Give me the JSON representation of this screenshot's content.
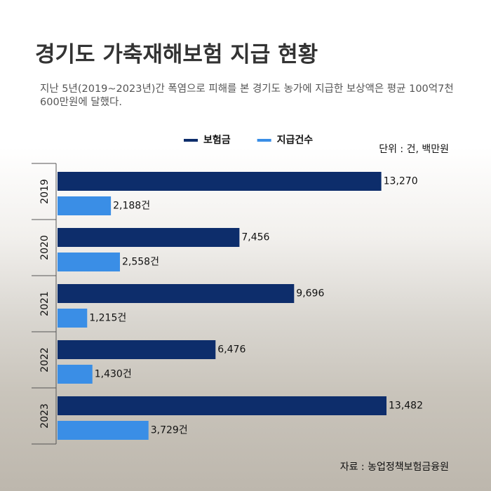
{
  "chart_data": {
    "type": "bar",
    "orientation": "horizontal",
    "title": "경기도 가축재해보험 지급 현황",
    "subtitle": "지난 5년(2019~2023년)간 폭염으로 피해를 본 경기도 농가에 지급한 보상액은 평균 100억7천600만원에 달했다.",
    "unit_note": "단위 : 건, 백만원",
    "source": "자료 : 농업정책보험금융원",
    "categories": [
      "2019",
      "2020",
      "2021",
      "2022",
      "2023"
    ],
    "series": [
      {
        "name": "보험금",
        "color": "#0d2d6b",
        "values": [
          13270,
          7456,
          9696,
          6476,
          13482
        ],
        "value_labels": [
          "13,270",
          "7,456",
          "9,696",
          "6,476",
          "13,482"
        ]
      },
      {
        "name": "지급건수",
        "color": "#3a8ee6",
        "values": [
          2188,
          2558,
          1215,
          1430,
          3729
        ],
        "value_labels": [
          "2,188건",
          "2,558건",
          "1,215건",
          "1,430건",
          "3,729건"
        ]
      }
    ]
  }
}
